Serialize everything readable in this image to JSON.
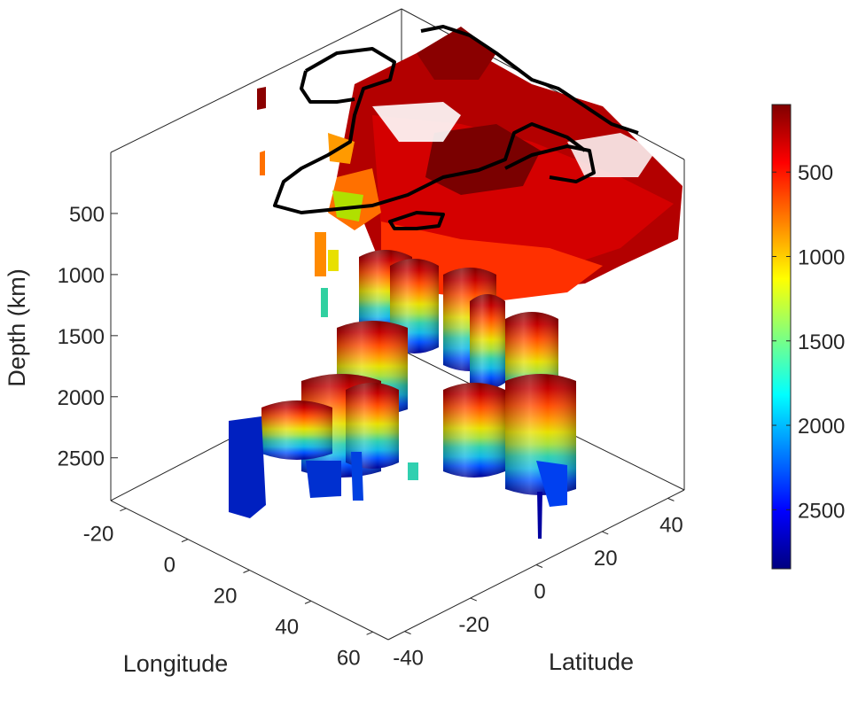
{
  "chart_data": {
    "type": "3d-isosurface",
    "xlabel": "Longitude",
    "ylabel": "Latitude",
    "zlabel": "Depth (km)",
    "x_ticks": [
      -20,
      0,
      20,
      40,
      60
    ],
    "y_ticks": [
      -40,
      -20,
      0,
      20,
      40
    ],
    "z_ticks": [
      500,
      1000,
      1500,
      2000,
      2500
    ],
    "xlim": [
      -25,
      65
    ],
    "ylim": [
      -45,
      45
    ],
    "zlim": [
      2850,
      0
    ],
    "colorbar": {
      "colormap": "jet",
      "ticks": [
        500,
        1000,
        1500,
        2000,
        2500
      ],
      "range": [
        100,
        2850
      ],
      "reversed": true
    },
    "grid": false,
    "legend": "none",
    "overlay": "black coastline outlines at the top of the volume"
  }
}
